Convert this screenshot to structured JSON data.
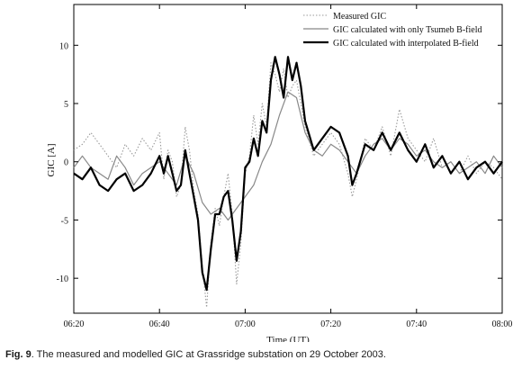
{
  "caption": {
    "label": "Fig. 9",
    "text": ". The measured and modelled GIC at Grassridge substation on 29 October 2003."
  },
  "chart_data": {
    "type": "line",
    "title": "",
    "xlabel": "Time (UT)",
    "ylabel": "GIC [A]",
    "x_unit": "time of day (UT)",
    "xlim": [
      "06:20",
      "08:00"
    ],
    "ylim": [
      -13,
      13.5
    ],
    "x_ticks": [
      "06:20",
      "06:40",
      "07:00",
      "07:20",
      "07:40",
      "08:00"
    ],
    "y_ticks": [
      -10,
      -5,
      0,
      5,
      10
    ],
    "grid": false,
    "legend_position": "top-right",
    "series": [
      {
        "name": "Measured GIC",
        "color": "#9a9a9a",
        "style": "dotted",
        "points": [
          [
            "06:20",
            1.0
          ],
          [
            "06:22",
            1.5
          ],
          [
            "06:24",
            2.5
          ],
          [
            "06:26",
            1.5
          ],
          [
            "06:28",
            0.5
          ],
          [
            "06:30",
            -0.5
          ],
          [
            "06:32",
            1.5
          ],
          [
            "06:34",
            0.5
          ],
          [
            "06:36",
            2.0
          ],
          [
            "06:38",
            1.0
          ],
          [
            "06:40",
            2.5
          ],
          [
            "06:41",
            -1.5
          ],
          [
            "06:42",
            1.0
          ],
          [
            "06:43",
            0.0
          ],
          [
            "06:44",
            -3.0
          ],
          [
            "06:45",
            -2.0
          ],
          [
            "06:46",
            3.0
          ],
          [
            "06:47",
            1.0
          ],
          [
            "06:48",
            -2.5
          ],
          [
            "06:49",
            -4.5
          ],
          [
            "06:50",
            -9.0
          ],
          [
            "06:51",
            -12.5
          ],
          [
            "06:52",
            -7.0
          ],
          [
            "06:53",
            -4.0
          ],
          [
            "06:54",
            -5.5
          ],
          [
            "06:55",
            -3.0
          ],
          [
            "06:56",
            -1.0
          ],
          [
            "06:57",
            -4.5
          ],
          [
            "06:58",
            -10.5
          ],
          [
            "06:59",
            -7.0
          ],
          [
            "07:00",
            -1.0
          ],
          [
            "07:01",
            0.5
          ],
          [
            "07:02",
            4.0
          ],
          [
            "07:03",
            1.5
          ],
          [
            "07:04",
            5.0
          ],
          [
            "07:05",
            3.0
          ],
          [
            "07:06",
            8.5
          ],
          [
            "07:07",
            7.5
          ],
          [
            "07:08",
            6.0
          ],
          [
            "07:09",
            8.0
          ],
          [
            "07:10",
            5.5
          ],
          [
            "07:11",
            6.5
          ],
          [
            "07:12",
            7.0
          ],
          [
            "07:13",
            5.0
          ],
          [
            "07:14",
            3.0
          ],
          [
            "07:16",
            0.5
          ],
          [
            "07:18",
            1.5
          ],
          [
            "07:20",
            2.5
          ],
          [
            "07:22",
            1.5
          ],
          [
            "07:24",
            -1.0
          ],
          [
            "07:25",
            -3.0
          ],
          [
            "07:26",
            -1.5
          ],
          [
            "07:28",
            2.0
          ],
          [
            "07:30",
            1.0
          ],
          [
            "07:32",
            3.0
          ],
          [
            "07:34",
            0.5
          ],
          [
            "07:36",
            4.5
          ],
          [
            "07:38",
            2.0
          ],
          [
            "07:40",
            1.0
          ],
          [
            "07:42",
            0.0
          ],
          [
            "07:44",
            2.0
          ],
          [
            "07:46",
            -0.5
          ],
          [
            "07:48",
            0.0
          ],
          [
            "07:50",
            -1.0
          ],
          [
            "07:52",
            0.5
          ],
          [
            "07:54",
            -1.0
          ],
          [
            "07:56",
            0.0
          ],
          [
            "07:58",
            -0.5
          ],
          [
            "08:00",
            -1.5
          ]
        ]
      },
      {
        "name": "GIC calculated with only Tsumeb B-field",
        "color": "#888888",
        "style": "solid",
        "points": [
          [
            "06:20",
            -0.5
          ],
          [
            "06:22",
            0.5
          ],
          [
            "06:24",
            -0.5
          ],
          [
            "06:26",
            -1.0
          ],
          [
            "06:28",
            -1.5
          ],
          [
            "06:30",
            0.5
          ],
          [
            "06:32",
            -0.5
          ],
          [
            "06:34",
            -2.0
          ],
          [
            "06:36",
            -1.0
          ],
          [
            "06:38",
            -0.5
          ],
          [
            "06:40",
            0.0
          ],
          [
            "06:42",
            -1.0
          ],
          [
            "06:44",
            -2.0
          ],
          [
            "06:46",
            0.5
          ],
          [
            "06:48",
            -1.0
          ],
          [
            "06:50",
            -3.5
          ],
          [
            "06:52",
            -4.5
          ],
          [
            "06:54",
            -4.0
          ],
          [
            "06:56",
            -5.0
          ],
          [
            "06:58",
            -4.0
          ],
          [
            "07:00",
            -3.0
          ],
          [
            "07:02",
            -2.0
          ],
          [
            "07:04",
            0.0
          ],
          [
            "07:06",
            1.5
          ],
          [
            "07:08",
            4.0
          ],
          [
            "07:10",
            6.0
          ],
          [
            "07:12",
            5.5
          ],
          [
            "07:14",
            2.5
          ],
          [
            "07:16",
            1.0
          ],
          [
            "07:18",
            0.5
          ],
          [
            "07:20",
            1.5
          ],
          [
            "07:22",
            1.0
          ],
          [
            "07:24",
            0.0
          ],
          [
            "07:26",
            -1.0
          ],
          [
            "07:28",
            0.5
          ],
          [
            "07:30",
            1.5
          ],
          [
            "07:32",
            2.0
          ],
          [
            "07:34",
            1.0
          ],
          [
            "07:36",
            2.0
          ],
          [
            "07:38",
            1.5
          ],
          [
            "07:40",
            0.5
          ],
          [
            "07:42",
            1.0
          ],
          [
            "07:44",
            0.0
          ],
          [
            "07:46",
            -0.5
          ],
          [
            "07:48",
            0.0
          ],
          [
            "07:50",
            -1.0
          ],
          [
            "07:52",
            -0.5
          ],
          [
            "07:54",
            0.0
          ],
          [
            "07:56",
            -1.0
          ],
          [
            "07:58",
            0.5
          ],
          [
            "08:00",
            -0.5
          ]
        ]
      },
      {
        "name": "GIC calculated with interpolated B-field",
        "color": "#000000",
        "style": "solid-bold",
        "points": [
          [
            "06:20",
            -1.0
          ],
          [
            "06:22",
            -1.5
          ],
          [
            "06:24",
            -0.5
          ],
          [
            "06:26",
            -2.0
          ],
          [
            "06:28",
            -2.5
          ],
          [
            "06:30",
            -1.5
          ],
          [
            "06:32",
            -1.0
          ],
          [
            "06:34",
            -2.5
          ],
          [
            "06:36",
            -2.0
          ],
          [
            "06:38",
            -1.0
          ],
          [
            "06:40",
            0.5
          ],
          [
            "06:41",
            -1.0
          ],
          [
            "06:42",
            0.5
          ],
          [
            "06:43",
            -1.0
          ],
          [
            "06:44",
            -2.5
          ],
          [
            "06:45",
            -2.0
          ],
          [
            "06:46",
            1.0
          ],
          [
            "06:47",
            -1.0
          ],
          [
            "06:48",
            -3.0
          ],
          [
            "06:49",
            -5.0
          ],
          [
            "06:50",
            -9.5
          ],
          [
            "06:51",
            -11.0
          ],
          [
            "06:52",
            -7.5
          ],
          [
            "06:53",
            -4.5
          ],
          [
            "06:54",
            -4.5
          ],
          [
            "06:55",
            -3.0
          ],
          [
            "06:56",
            -2.5
          ],
          [
            "06:57",
            -5.0
          ],
          [
            "06:58",
            -8.5
          ],
          [
            "06:59",
            -6.0
          ],
          [
            "07:00",
            -0.5
          ],
          [
            "07:01",
            0.0
          ],
          [
            "07:02",
            2.0
          ],
          [
            "07:03",
            0.5
          ],
          [
            "07:04",
            3.5
          ],
          [
            "07:05",
            2.5
          ],
          [
            "07:06",
            7.0
          ],
          [
            "07:07",
            9.0
          ],
          [
            "07:08",
            7.5
          ],
          [
            "07:09",
            5.5
          ],
          [
            "07:10",
            9.0
          ],
          [
            "07:11",
            7.0
          ],
          [
            "07:12",
            8.5
          ],
          [
            "07:13",
            6.5
          ],
          [
            "07:14",
            3.5
          ],
          [
            "07:16",
            1.0
          ],
          [
            "07:18",
            2.0
          ],
          [
            "07:20",
            3.0
          ],
          [
            "07:22",
            2.5
          ],
          [
            "07:24",
            0.5
          ],
          [
            "07:25",
            -2.0
          ],
          [
            "07:26",
            -1.0
          ],
          [
            "07:28",
            1.5
          ],
          [
            "07:30",
            1.0
          ],
          [
            "07:32",
            2.5
          ],
          [
            "07:34",
            1.0
          ],
          [
            "07:36",
            2.5
          ],
          [
            "07:38",
            1.0
          ],
          [
            "07:40",
            0.0
          ],
          [
            "07:42",
            1.5
          ],
          [
            "07:44",
            -0.5
          ],
          [
            "07:46",
            0.5
          ],
          [
            "07:48",
            -1.0
          ],
          [
            "07:50",
            0.0
          ],
          [
            "07:52",
            -1.5
          ],
          [
            "07:54",
            -0.5
          ],
          [
            "07:56",
            0.0
          ],
          [
            "07:58",
            -1.0
          ],
          [
            "08:00",
            0.0
          ]
        ]
      }
    ]
  }
}
